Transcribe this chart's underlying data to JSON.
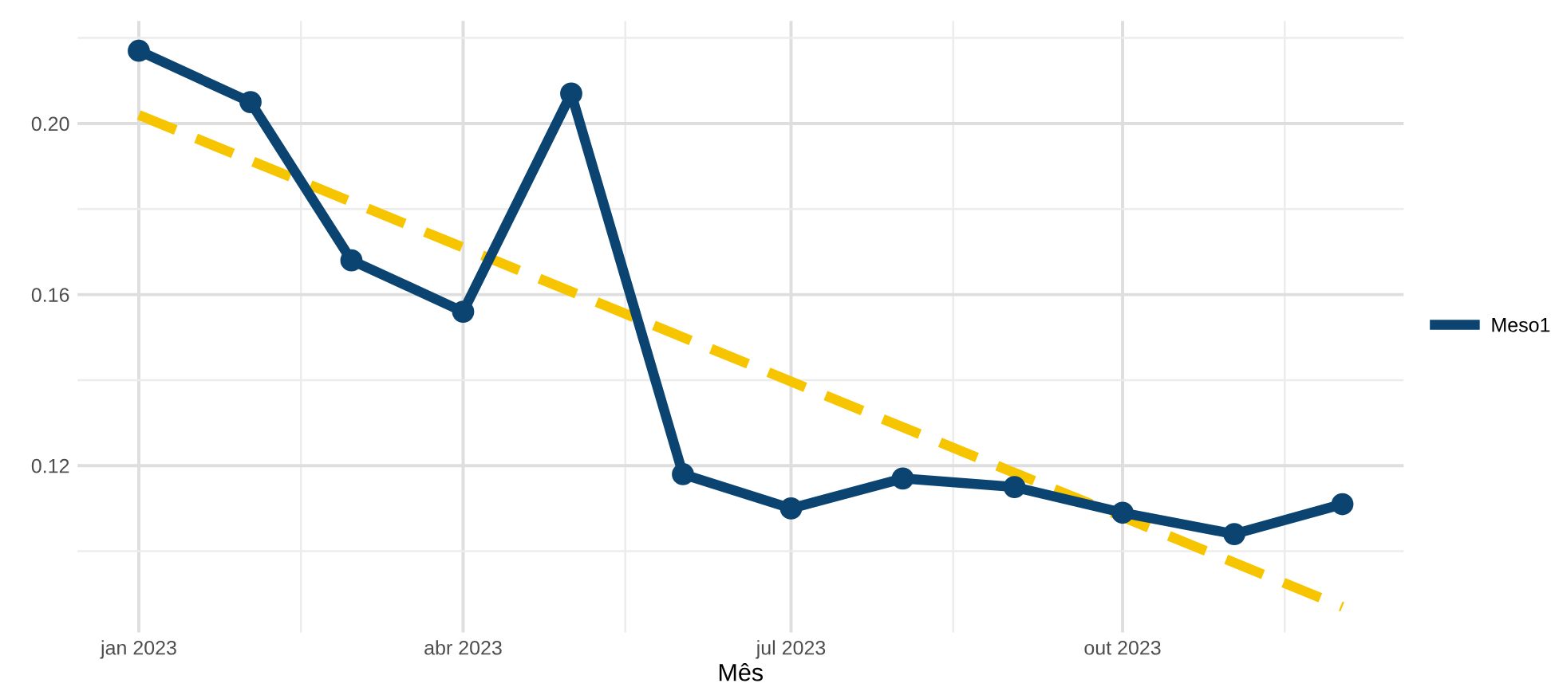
{
  "chart_data": {
    "type": "line",
    "xlabel": "Mês",
    "x": [
      "2023-01-01",
      "2023-02-01",
      "2023-03-01",
      "2023-04-01",
      "2023-05-01",
      "2023-06-01",
      "2023-07-01",
      "2023-08-01",
      "2023-09-01",
      "2023-10-01",
      "2023-11-01",
      "2023-12-01"
    ],
    "series": [
      {
        "name": "Meso1",
        "color": "#0b4470",
        "marker": "circle",
        "line_style": "solid",
        "values": [
          0.217,
          0.205,
          0.168,
          0.156,
          0.207,
          0.118,
          0.11,
          0.117,
          0.115,
          0.109,
          0.104,
          0.111
        ]
      },
      {
        "color": "#f7c500",
        "marker": "none",
        "line_style": "dashed",
        "x": [
          "2023-01-01",
          "2023-12-01"
        ],
        "values": [
          0.202,
          0.087
        ]
      }
    ],
    "xlim": [
      "2022-12-15",
      "2023-12-18"
    ],
    "ylim": [
      0.081,
      0.224
    ],
    "xticks": [
      {
        "value": "2023-01-01",
        "label": "jan 2023"
      },
      {
        "value": "2023-04-01",
        "label": "abr 2023"
      },
      {
        "value": "2023-07-01",
        "label": "jul 2023"
      },
      {
        "value": "2023-10-01",
        "label": "out 2023"
      }
    ],
    "yticks": [
      0.12,
      0.16,
      {
        "value": 0.2,
        "label": "0.20"
      }
    ],
    "grid": true,
    "legend": "right"
  }
}
